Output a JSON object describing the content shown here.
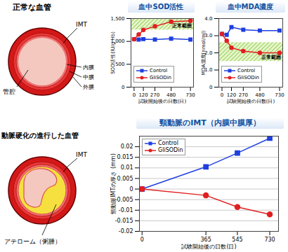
{
  "diagram": {
    "normal_vessel": {
      "title": "正常な血管",
      "labels": {
        "imt": "IMT",
        "intima": "内膜",
        "media": "中膜",
        "adventitia": "外膜",
        "lumen": "管腔"
      }
    },
    "atherosclerotic_vessel": {
      "title": "動脈硬化の進行した血管",
      "labels": {
        "imt": "IMT",
        "atheroma": "アテローム（粥腫）"
      }
    }
  },
  "chart_data": [
    {
      "type": "line",
      "title": "血中SOD活性",
      "x_label": "試験開始後の日数(日)",
      "y_label": "SOD活性(IU/g Hb)",
      "x": [
        0,
        60,
        120,
        270,
        480,
        730
      ],
      "xlim": [
        -40,
        770
      ],
      "xticks": [
        0,
        120,
        270,
        480,
        730
      ],
      "ylim": [
        0,
        1500
      ],
      "yticks": [
        0,
        500,
        {
          "value": 1000,
          "label": "1,000"
        },
        {
          "value": 1500,
          "label": "1,500"
        }
      ],
      "annotations": [
        {
          "text": "正常範囲",
          "y_range": [
            1250,
            1500
          ]
        }
      ],
      "legend": "bottom",
      "series": [
        {
          "name": "Control",
          "color": "#1f3fe0",
          "marker": "square",
          "values": [
            1050,
            1040,
            1050,
            1040,
            1060,
            1040
          ]
        },
        {
          "name": "GliSODin",
          "color": "#e02020",
          "marker": "circle",
          "values": [
            1050,
            1150,
            1250,
            1330,
            1430,
            1450
          ]
        }
      ]
    },
    {
      "type": "line",
      "title": "血中MDA濃度",
      "x_label": "試験開始後の日数(日)",
      "y_label": "MDA濃度(nmol/ml)",
      "x": [
        0,
        60,
        120,
        270,
        480,
        730
      ],
      "xlim": [
        -40,
        770
      ],
      "xticks": [
        0,
        120,
        270,
        480,
        730
      ],
      "ylim": [
        0,
        4
      ],
      "yticks": [
        0,
        {
          "value": 1,
          "label": "1.0"
        },
        {
          "value": 2,
          "label": "2.0"
        },
        {
          "value": 3,
          "label": "3.0"
        },
        {
          "value": 4,
          "label": "4.0"
        }
      ],
      "annotations": [
        {
          "text": "正常範囲",
          "y_range": [
            1.5,
            2.6
          ]
        }
      ],
      "legend": "bottom",
      "series": [
        {
          "name": "Control",
          "color": "#1f3fe0",
          "marker": "square",
          "values": [
            3.1,
            3.05,
            3.5,
            3.35,
            3.3,
            3.3
          ]
        },
        {
          "name": "GliSODin",
          "color": "#e02020",
          "marker": "circle",
          "values": [
            3.1,
            2.7,
            2.3,
            2.1,
            2.0,
            2.0
          ]
        }
      ]
    },
    {
      "type": "line",
      "title": "頸動脈のIMT（内膜中膜厚）",
      "x_label": "試験開始後の日数(日)",
      "y_label": "頸動脈IMTの厚さ (mm)",
      "x": [
        0,
        365,
        545,
        730
      ],
      "xlim": [
        -15,
        780
      ],
      "xticks": [
        0,
        365,
        545,
        730
      ],
      "ylim": [
        -0.02,
        0.025
      ],
      "yticks": [
        -0.02,
        -0.015,
        -0.01,
        -0.005,
        0,
        0.005,
        0.01,
        0.015,
        0.02
      ],
      "grid": true,
      "legend": "top-left",
      "series": [
        {
          "name": "Control",
          "color": "#1f3fe0",
          "marker": "square",
          "values": [
            0,
            0.0105,
            0.017,
            0.024
          ]
        },
        {
          "name": "GliSODin",
          "color": "#e02020",
          "marker": "circle",
          "values": [
            0,
            -0.003,
            -0.0085,
            -0.012
          ]
        }
      ]
    }
  ]
}
